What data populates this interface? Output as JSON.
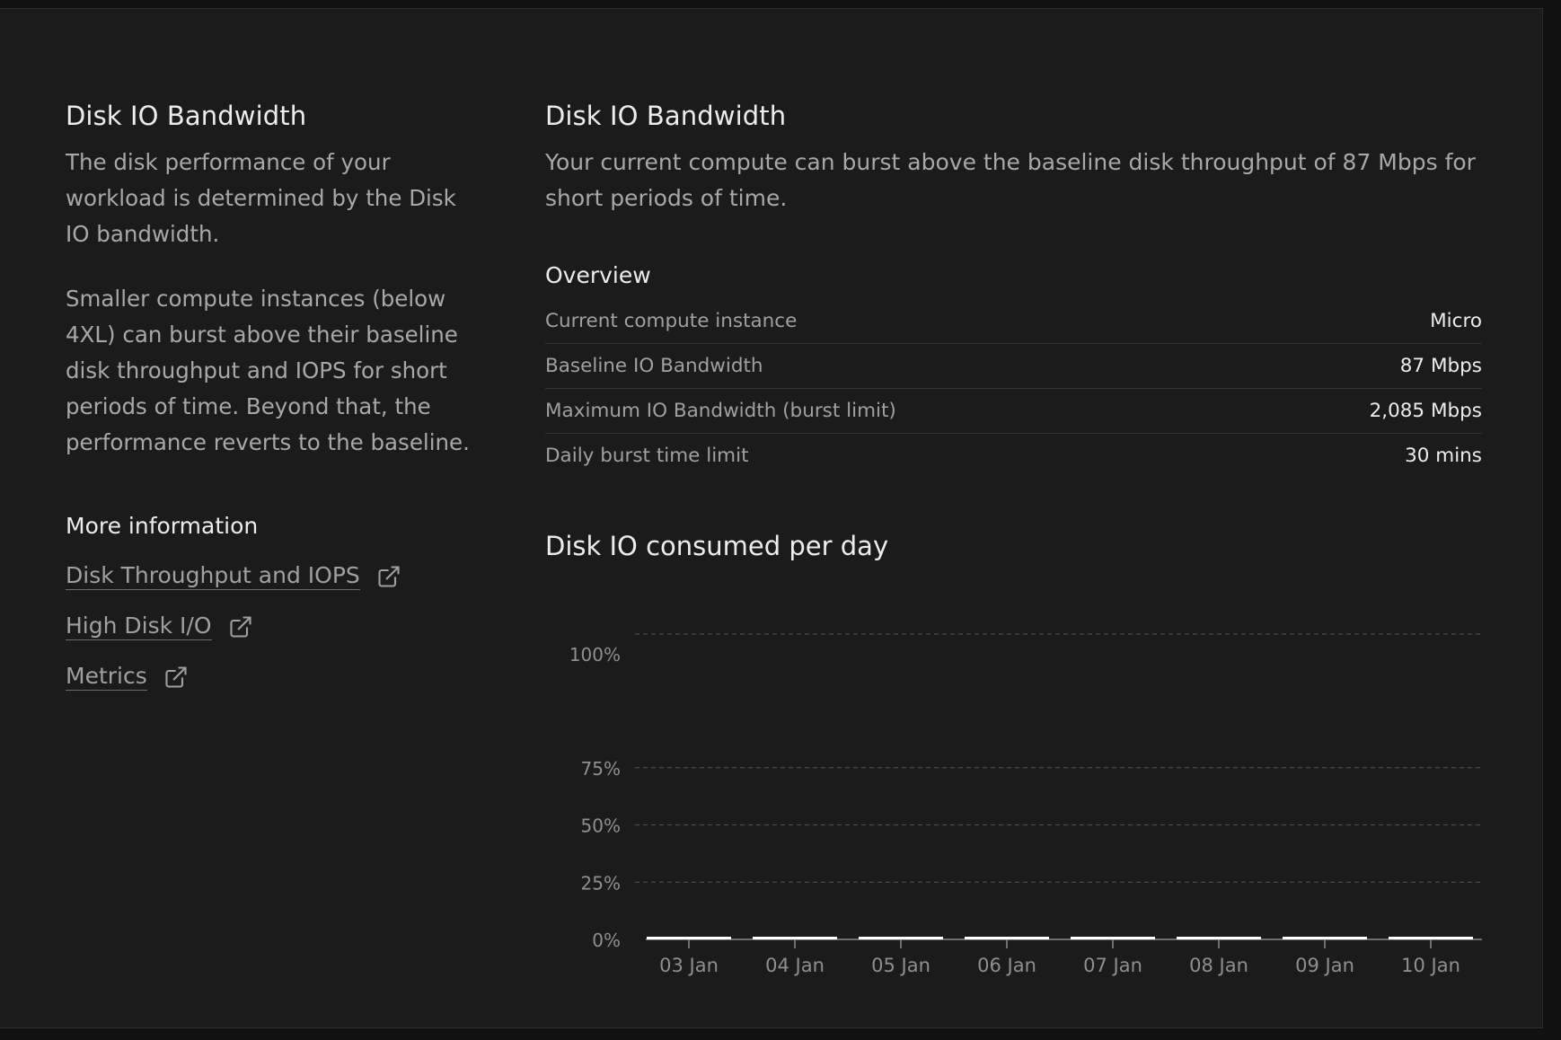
{
  "left": {
    "title": "Disk IO Bandwidth",
    "paragraph1": "The disk performance of your workload is determined by the Disk IO bandwidth.",
    "paragraph2": "Smaller compute instances (below 4XL) can burst above their baseline disk throughput and IOPS for short periods of time. Beyond that, the performance reverts to the baseline.",
    "more_info_title": "More information",
    "links": [
      {
        "label": "Disk Throughput and IOPS",
        "icon": "external-link-icon"
      },
      {
        "label": "High Disk I/O",
        "icon": "external-link-icon"
      },
      {
        "label": "Metrics",
        "icon": "external-link-icon"
      }
    ]
  },
  "right": {
    "title": "Disk IO Bandwidth",
    "description": "Your current compute can burst above the baseline disk throughput of 87 Mbps for short periods of time.",
    "overview_title": "Overview",
    "overview": [
      {
        "label": "Current compute instance",
        "value": "Micro"
      },
      {
        "label": "Baseline IO Bandwidth",
        "value": "87 Mbps"
      },
      {
        "label": "Maximum IO Bandwidth (burst limit)",
        "value": "2,085 Mbps"
      },
      {
        "label": "Daily burst time limit",
        "value": "30 mins"
      }
    ],
    "chart_title": "Disk IO consumed per day"
  },
  "colors": {
    "background": "#1b1b1b",
    "text_primary": "#ededed",
    "text_secondary": "#a8a8a8",
    "bar": "#ffffff",
    "grid": "#4a4a4a"
  },
  "chart_data": {
    "type": "bar",
    "title": "Disk IO consumed per day",
    "categories": [
      "03 Jan",
      "04 Jan",
      "05 Jan",
      "06 Jan",
      "07 Jan",
      "08 Jan",
      "09 Jan",
      "10 Jan"
    ],
    "values": [
      0,
      0,
      0,
      0,
      0,
      0,
      0,
      0
    ],
    "ylim": [
      0,
      100
    ],
    "yticks": [
      0,
      25,
      50,
      75,
      100
    ],
    "ytick_labels": [
      "0%",
      "25%",
      "50%",
      "75%",
      "100%"
    ],
    "grid": true,
    "xlabel": "",
    "ylabel": ""
  }
}
